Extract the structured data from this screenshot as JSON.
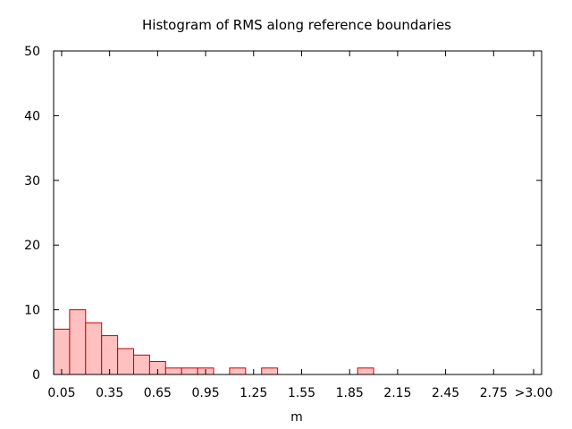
{
  "chart_data": {
    "type": "bar",
    "title": "Histogram of RMS along reference boundaries",
    "xlabel": "m",
    "ylabel": "",
    "ylim": [
      0,
      50
    ],
    "yticks": [
      0,
      10,
      20,
      30,
      40,
      50
    ],
    "xlim": [
      0.0,
      3.05
    ],
    "bin_width": 0.1,
    "xticks": [
      {
        "value": 0.05,
        "label": "0.05"
      },
      {
        "value": 0.35,
        "label": "0.35"
      },
      {
        "value": 0.65,
        "label": "0.65"
      },
      {
        "value": 0.95,
        "label": "0.95"
      },
      {
        "value": 1.25,
        "label": "1.25"
      },
      {
        "value": 1.55,
        "label": "1.55"
      },
      {
        "value": 1.85,
        "label": "1.85"
      },
      {
        "value": 2.15,
        "label": "2.15"
      },
      {
        "value": 2.45,
        "label": "2.45"
      },
      {
        "value": 2.75,
        "label": "2.75"
      },
      {
        "value": 3.0,
        "label": ">3.00"
      }
    ],
    "bins": [
      {
        "x": 0.05,
        "value": 7
      },
      {
        "x": 0.15,
        "value": 10
      },
      {
        "x": 0.25,
        "value": 8
      },
      {
        "x": 0.35,
        "value": 6
      },
      {
        "x": 0.45,
        "value": 4
      },
      {
        "x": 0.55,
        "value": 3
      },
      {
        "x": 0.65,
        "value": 2
      },
      {
        "x": 0.75,
        "value": 1
      },
      {
        "x": 0.85,
        "value": 1
      },
      {
        "x": 0.95,
        "value": 1
      },
      {
        "x": 1.15,
        "value": 1
      },
      {
        "x": 1.35,
        "value": 1
      },
      {
        "x": 1.95,
        "value": 1
      }
    ],
    "grid": false,
    "colors": {
      "bar_fill": "#ffc0c0",
      "bar_stroke": "#cc0000",
      "axis": "#000000"
    }
  }
}
